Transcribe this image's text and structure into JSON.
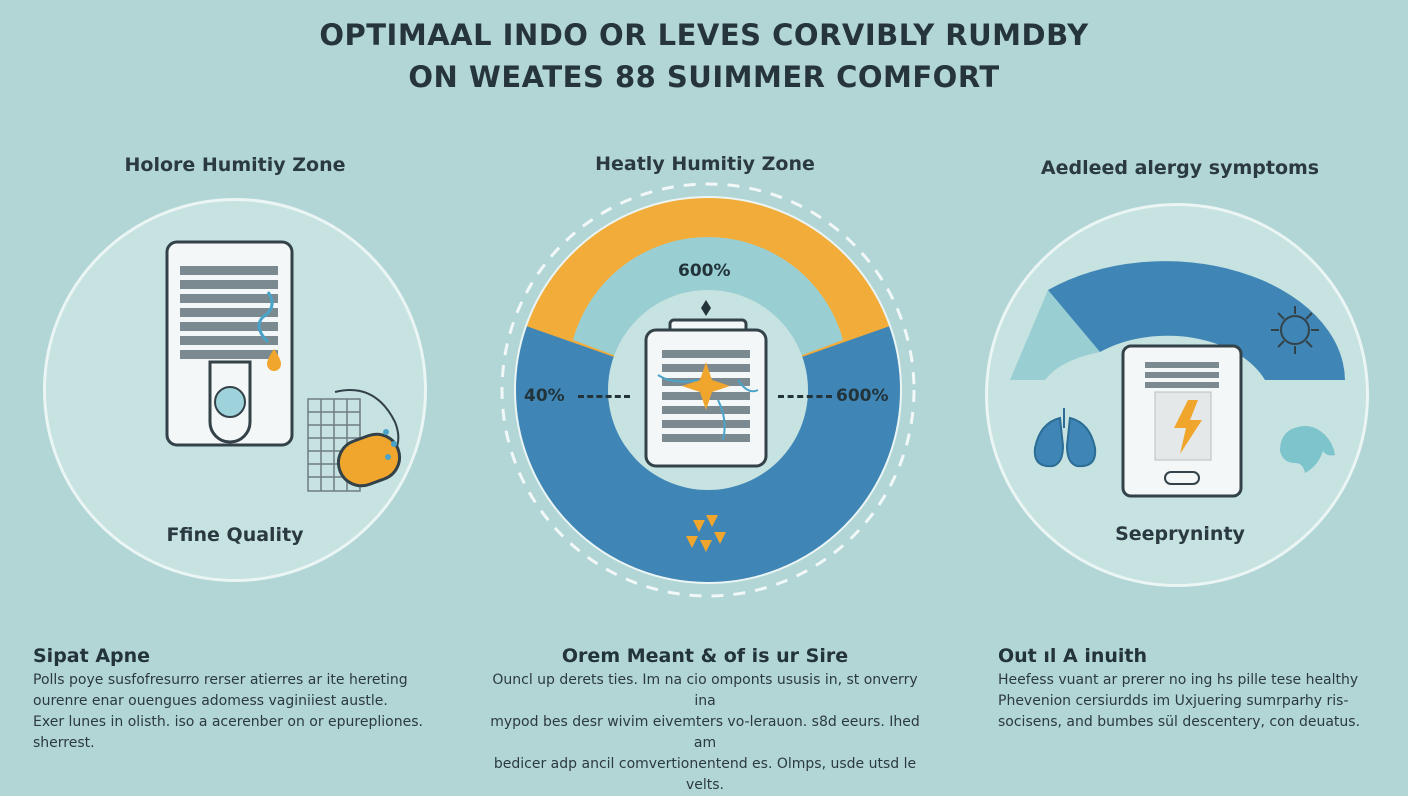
{
  "header": {
    "title_line1": "OPTIMAAL INDO OR LEVES CORVIBLY RUMDBY",
    "title_line2": "ON WEATES 88 SUIMMER COMFORT"
  },
  "panels": [
    {
      "title": "Holore Humitiy Zone",
      "caption": "Ffine Quality",
      "icons": [
        "air-vent-icon",
        "water-drop-icon",
        "filter-mesh-icon",
        "pollen-capsule-icon"
      ]
    },
    {
      "title": "Heatly Humitiy Zone",
      "gauge_top_value": "600%",
      "gauge_left_value": "40%",
      "gauge_right_value": "600%",
      "icons": [
        "dehumidifier-icon",
        "spark-icon",
        "heat-arrows-icon"
      ]
    },
    {
      "title": "Aedleed alergy symptoms",
      "caption": "Seepryninty",
      "icons": [
        "lungs-icon",
        "air-purifier-icon",
        "lightning-icon",
        "sun-icon",
        "face-profile-icon"
      ]
    }
  ],
  "sections": [
    {
      "heading": "Sipat Apne",
      "body": "Polls poye susfofresurro rerser atierres ar ite hereting\nourenre enar ouengues adomess vaginiiest austle.\nExer lunes in olisth. iso a acerenber on or epurepliones.\nsherrest."
    },
    {
      "heading": "Orem Meant & of is ur Sire",
      "body": "Ouncl up derets ties. Im na cio omponts ususis in, st onverry ina\nmypod bes desr wivim eivemters vo-lerauon. s8d eeurs. Ihed am\nbedicer adp ancil comvertionentend es. Olmps, usde utsd le velts."
    },
    {
      "heading": "Out ıl A inuith",
      "body": "Heefess vuant ar prerer no ing hs pille tese healthy\nPhevenion cersiurdds im Uxjuering sumrparhy ris-\nsocisens, and bumbes sül descentery, con deuatus."
    }
  ],
  "colors": {
    "background": "#b2d5d6",
    "circle_fill": "#c6e2e1",
    "gauge_orange": "#f2ac3a",
    "gauge_blue": "#3f85b5",
    "gauge_teal": "#99cfd2",
    "accent_orange": "#f0a52c"
  }
}
